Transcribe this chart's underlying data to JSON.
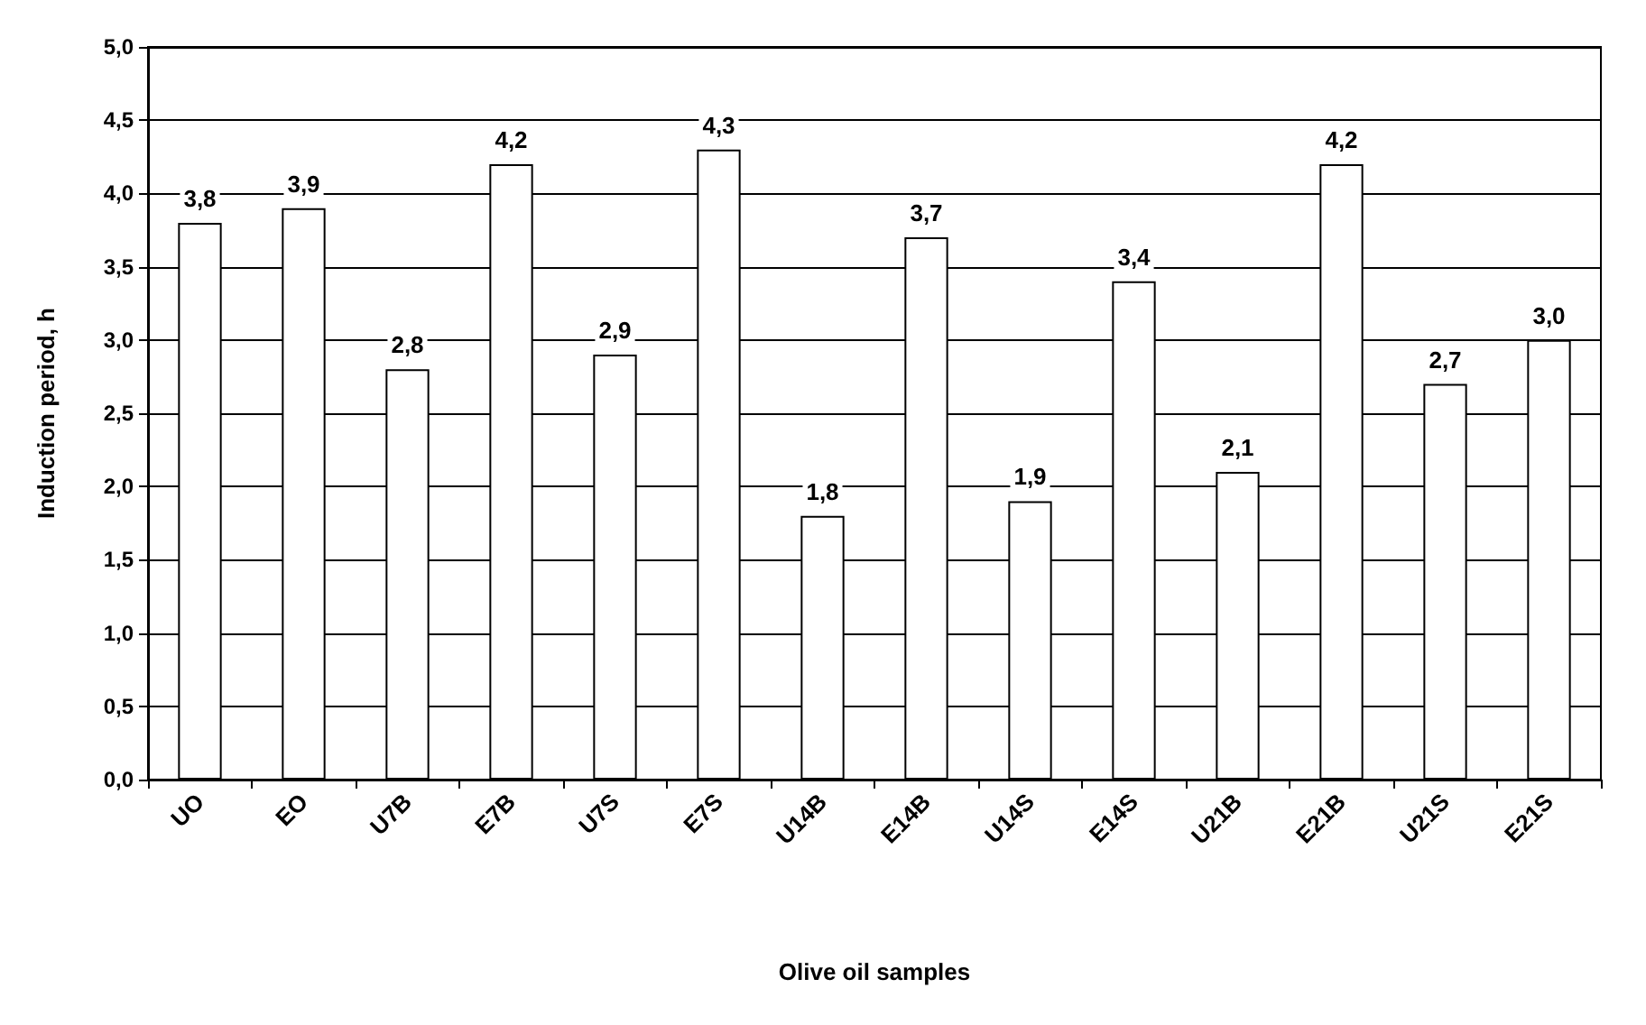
{
  "chart_data": {
    "type": "bar",
    "xlabel": "Olive oil samples",
    "ylabel": "Induction period, h",
    "categories": [
      "UO",
      "EO",
      "U7B",
      "E7B",
      "U7S",
      "E7S",
      "U14B",
      "E14B",
      "U14S",
      "E14S",
      "U21B",
      "E21B",
      "U21S",
      "E21S"
    ],
    "values": [
      3.8,
      3.9,
      2.8,
      4.2,
      2.9,
      4.3,
      1.8,
      3.7,
      1.9,
      3.4,
      2.1,
      4.2,
      2.7,
      3.0
    ],
    "value_labels": [
      "3,8",
      "3,9",
      "2,8",
      "4,2",
      "2,9",
      "4,3",
      "1,8",
      "3,7",
      "1,9",
      "3,4",
      "2,1",
      "4,2",
      "2,7",
      "3,0"
    ],
    "color": "#ffffff",
    "ylim": [
      0,
      5
    ],
    "yticks": [
      {
        "value": 0,
        "label": "0,0"
      },
      {
        "value": 0.5,
        "label": "0,5"
      },
      {
        "value": 1,
        "label": "1,0"
      },
      {
        "value": 1.5,
        "label": "1,5"
      },
      {
        "value": 2,
        "label": "2,0"
      },
      {
        "value": 2.5,
        "label": "2,5"
      },
      {
        "value": 3,
        "label": "3,0"
      },
      {
        "value": 3.5,
        "label": "3,5"
      },
      {
        "value": 4,
        "label": "4,0"
      },
      {
        "value": 4.5,
        "label": "4,5"
      },
      {
        "value": 5,
        "label": "5,0"
      }
    ],
    "grid": "y"
  }
}
